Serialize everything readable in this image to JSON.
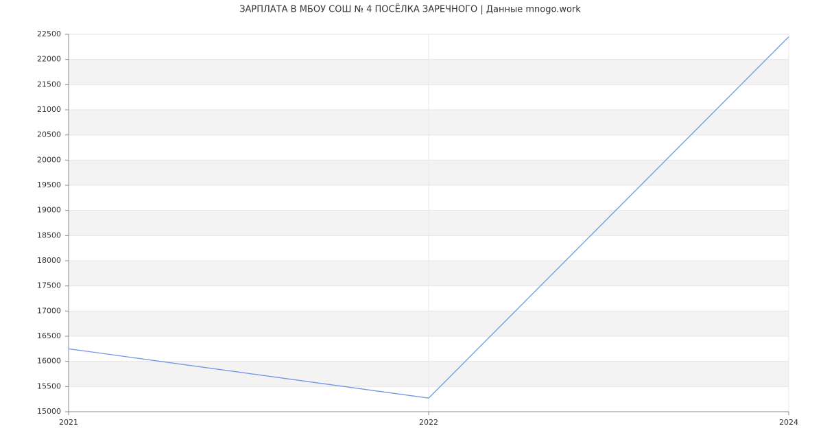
{
  "chart_data": {
    "type": "line",
    "title": "ЗАРПЛАТА В МБОУ СОШ № 4 ПОСЁЛКА ЗАРЕЧНОГО | Данные mnogo.work",
    "categories": [
      "2021",
      "2022",
      "2024"
    ],
    "series": [
      {
        "name": "Зарплата",
        "color": "#6f96e8",
        "values": [
          16250,
          15270,
          22450
        ]
      }
    ],
    "ylim": [
      15000,
      22500
    ],
    "yticks": [
      15000,
      15500,
      16000,
      16500,
      17000,
      17500,
      18000,
      18500,
      19000,
      19500,
      20000,
      20500,
      21000,
      21500,
      22000,
      22500
    ],
    "grid": true
  }
}
